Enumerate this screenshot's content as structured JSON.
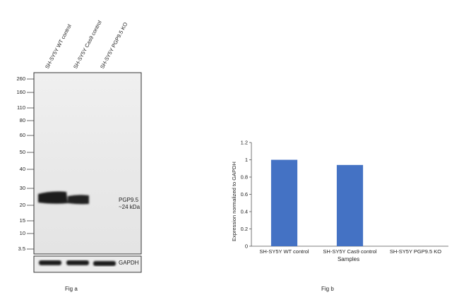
{
  "fig_a": {
    "lanes": [
      "SH-SY5Y WT control",
      "SH-SY5Y Cas9 control",
      "SH-SY5Y PGP9.5 KO"
    ],
    "markers": [
      "260",
      "160",
      "110",
      "80",
      "60",
      "50",
      "40",
      "30",
      "20",
      "15",
      "10",
      "3.5"
    ],
    "band_label_line1": "PGP9.5",
    "band_label_line2": "~24 kDa",
    "loading_control_label": "GAPDH",
    "caption": "Fig a"
  },
  "fig_b": {
    "caption": "Fig b"
  },
  "chart_data": {
    "type": "bar",
    "categories": [
      "SH-SY5Y WT control",
      "SH-SY5Y Cas9 control",
      "SH-SY5Y PGP9.5 KO"
    ],
    "values": [
      1.0,
      0.94,
      0.0
    ],
    "xlabel": "Samples",
    "ylabel": "Expression normalized to GAPDH",
    "ylim": [
      0,
      1.2
    ],
    "yticks": [
      0,
      0.2,
      0.4,
      0.6,
      0.8,
      1,
      1.2
    ],
    "ytick_labels": [
      "0",
      "0.2",
      "0.4",
      "0.6",
      "0.8",
      "1",
      "1.2"
    ],
    "bar_color": "#4472c4",
    "grid": false,
    "legend": "none"
  }
}
